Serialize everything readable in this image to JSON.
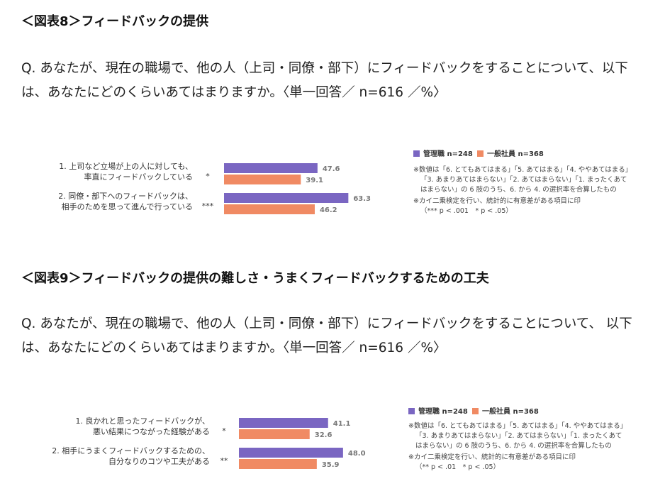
{
  "colors": {
    "manager": "#7a66c2",
    "general": "#f08a63",
    "text": "#333333"
  },
  "figure8": {
    "heading": "＜図表8＞フィードバックの提供",
    "question": "Q. あなたが、現在の職場で、他の人（上司・同僚・部下）にフィードバックをすることについて、以下は、あなたにどのくらいあてはまりますか。〈単一回答／ n=616 ／%〉",
    "legend": [
      "管理職 n=248",
      "一般社員 n=368"
    ],
    "notes": [
      "※数値は「6. とてもあてはまる」「5. あてはまる」「4. ややあてはまる」",
      "「3. あまりあてはまらない」「2. あてはまらない」「1. まったくあて",
      "はまらない」の 6 肢のうち、6. から 4. の選択率を合算したもの",
      "※カイ二乗検定を行い、統計的に有意差がある項目に印",
      "（*** p < .001　* p < .05）"
    ]
  },
  "figure9": {
    "heading": "＜図表9＞フィードバックの提供の難しさ・うまくフィードバックするための工夫",
    "question": "Q. あなたが、現在の職場で、他の人（上司・同僚・部下）にフィードバックをすることについて、 以下は、あなたにどのくらいあてはまりますか。〈単一回答／ n=616 ／%〉",
    "legend": [
      "管理職 n=248",
      "一般社員 n=368"
    ],
    "notes": [
      "※数値は「6. とてもあてはまる」「5. あてはまる」「4. ややあてはまる」",
      "「3. あまりあてはまらない」「2. あてはまらない」「1. まったくあて",
      "はまらない」の 6 肢のうち、6. から 4. の選択率を合算したもの",
      "※カイ二乗検定を行い、統計的に有意差がある項目に印",
      "（** p < .01　* p < .05）"
    ]
  },
  "chart_data": [
    {
      "type": "bar",
      "orientation": "horizontal",
      "title": "＜図表8＞フィードバックの提供",
      "categories": [
        [
          "1. 上司など立場が上の人に対しても、",
          "率直にフィードバックしている"
        ],
        [
          "2. 同僚・部下へのフィードバックは、",
          "相手のためを思って進んで行っている"
        ]
      ],
      "significance": [
        "*",
        "***"
      ],
      "series": [
        {
          "name": "管理職 n=248",
          "values": [
            47.6,
            63.3
          ],
          "labels": [
            "47.6",
            "63.3"
          ]
        },
        {
          "name": "一般社員 n=368",
          "values": [
            39.1,
            46.2
          ],
          "labels": [
            "39.1",
            "46.2"
          ]
        }
      ],
      "xlim": [
        0,
        100
      ],
      "legend": "top-right",
      "grid": false
    },
    {
      "type": "bar",
      "orientation": "horizontal",
      "title": "＜図表9＞フィードバックの提供の難しさ・うまくフィードバックするための工夫",
      "categories": [
        [
          "1. 良かれと思ったフィードバックが、",
          "悪い結果につながった経験がある"
        ],
        [
          "2. 相手にうまくフィードバックするための、",
          "自分なりのコツや工夫がある"
        ]
      ],
      "significance": [
        "*",
        "**"
      ],
      "series": [
        {
          "name": "管理職 n=248",
          "values": [
            41.1,
            48.0
          ],
          "labels": [
            "41.1",
            "48.0"
          ]
        },
        {
          "name": "一般社員 n=368",
          "values": [
            32.6,
            35.9
          ],
          "labels": [
            "32.6",
            "35.9"
          ]
        }
      ],
      "xlim": [
        0,
        100
      ],
      "legend": "top-right",
      "grid": false
    }
  ]
}
